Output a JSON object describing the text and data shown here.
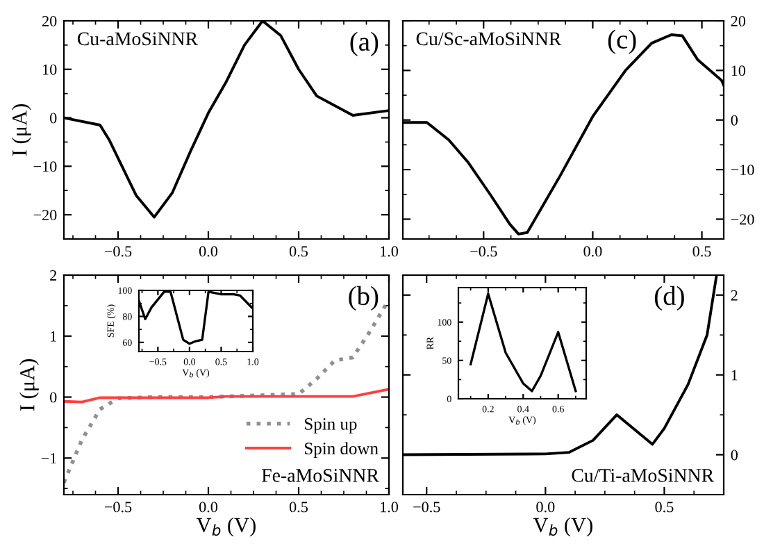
{
  "chart_data": [
    {
      "type": "line",
      "ylabel": "I (μA)",
      "annotations": [
        "Cu-aMoSiNNR",
        "(a)"
      ],
      "xlim": [
        -0.8,
        1.0
      ],
      "ylim": [
        -25,
        20
      ],
      "xticks": [
        {
          "value": -0.5,
          "label": "−0.5"
        },
        {
          "value": 0,
          "label": "0.0"
        },
        {
          "value": 0.5,
          "label": "0.5"
        },
        {
          "value": 1,
          "label": "1.0"
        }
      ],
      "yticks": [
        {
          "value": -20,
          "label": "−20"
        },
        {
          "value": -10,
          "label": "−10"
        },
        0,
        10,
        20
      ],
      "grid": false,
      "legend": false,
      "series": [
        {
          "color": "#000000",
          "x": [
            -0.8,
            -0.6,
            -0.55,
            -0.4,
            -0.3,
            -0.2,
            -0.1,
            0.0,
            0.1,
            0.2,
            0.3,
            0.4,
            0.5,
            0.6,
            0.8,
            1.0
          ],
          "values": [
            0,
            -1.5,
            -4.5,
            -16,
            -20.5,
            -15.5,
            -7,
            1,
            7.5,
            15,
            20,
            17,
            10,
            4.5,
            0.5,
            1.5
          ]
        }
      ]
    },
    {
      "type": "line",
      "xlabel": "V$_{b}$ (V)",
      "ylabel": "I (μA)",
      "annotations": [
        "Fe-aMoSiNNR",
        "(b)"
      ],
      "xlim": [
        -0.8,
        1.0
      ],
      "ylim": [
        -1.6,
        2
      ],
      "xticks": [
        {
          "value": -0.5,
          "label": "−0.5"
        },
        {
          "value": 0,
          "label": "0.0"
        },
        {
          "value": 0.5,
          "label": "0.5"
        },
        {
          "value": 1,
          "label": "1.0"
        }
      ],
      "yticks": [
        {
          "value": -1,
          "label": "−1"
        },
        0,
        1,
        2
      ],
      "grid": false,
      "legend": "bottom right",
      "series": [
        {
          "name": "Spin up",
          "color": "#909090",
          "line_style": "dotted",
          "x": [
            -0.8,
            -0.7,
            -0.6,
            -0.5,
            -0.3,
            0.0,
            0.3,
            0.5,
            0.6,
            0.7,
            0.8,
            0.9,
            1.0
          ],
          "values": [
            -1.4,
            -0.7,
            -0.2,
            -0.02,
            0,
            0,
            0.03,
            0.05,
            0.3,
            0.6,
            0.65,
            1.1,
            1.6
          ]
        },
        {
          "name": "Spin down",
          "color": "#ff4040",
          "line_style": "solid",
          "x": [
            -0.8,
            -0.7,
            -0.6,
            -0.5,
            0.0,
            0.1,
            0.8,
            1.0
          ],
          "values": [
            -0.07,
            -0.08,
            -0.01,
            -0.01,
            -0.01,
            0.01,
            0.01,
            0.13
          ]
        }
      ]
    },
    {
      "type": "line",
      "xlabel": "V$_{b}$ (V)",
      "ylabel": "SFE (%)",
      "xlim": [
        -0.8,
        1.0
      ],
      "ylim": [
        53,
        100
      ],
      "xticks": [
        {
          "value": -0.5,
          "label": "−0.5"
        },
        {
          "value": 0,
          "label": "0.0"
        },
        {
          "value": 0.5,
          "label": "0.5"
        },
        {
          "value": 1,
          "label": "1.0"
        }
      ],
      "yticks": [
        60,
        80,
        100
      ],
      "grid": false,
      "legend": false,
      "series": [
        {
          "color": "#000000",
          "x": [
            -0.8,
            -0.7,
            -0.6,
            -0.4,
            -0.3,
            -0.1,
            0.0,
            0.1,
            0.2,
            0.3,
            0.5,
            0.7,
            0.8,
            1.0
          ],
          "values": [
            92,
            78,
            87,
            99,
            99,
            62,
            59,
            61,
            62,
            99,
            97,
            97,
            96,
            86
          ]
        }
      ]
    },
    {
      "type": "line",
      "annotations": [
        "Cu/Sc-aMoSiNNR",
        "(c)"
      ],
      "xlim": [
        -0.87,
        0.6
      ],
      "ylim": [
        -24,
        20
      ],
      "xticks": [
        {
          "value": -0.5,
          "label": "−0.5"
        },
        {
          "value": 0,
          "label": "0.0"
        },
        {
          "value": 0.5,
          "label": "0.5"
        }
      ],
      "yticks": [
        {
          "value": -20,
          "label": "−20"
        },
        {
          "value": -10,
          "label": "−10"
        },
        0,
        10,
        20
      ],
      "grid": false,
      "legend": false,
      "series": [
        {
          "color": "#000000",
          "x": [
            -0.87,
            -0.76,
            -0.66,
            -0.57,
            -0.47,
            -0.38,
            -0.34,
            -0.3,
            -0.15,
            0.0,
            0.15,
            0.27,
            0.36,
            0.41,
            0.48,
            0.59,
            0.6
          ],
          "values": [
            -0.5,
            -0.5,
            -4,
            -8.6,
            -15,
            -21,
            -23,
            -22.7,
            -11.3,
            0.7,
            10,
            15.5,
            17.2,
            17,
            12.2,
            8,
            7
          ]
        }
      ]
    },
    {
      "type": "line",
      "xlabel": "V$_{b}$ (V)",
      "annotations": [
        "Cu/Ti-aMoSiNNR",
        "(d)"
      ],
      "xlim": [
        -0.6,
        0.75
      ],
      "ylim": [
        -0.5,
        2.25
      ],
      "xticks": [
        {
          "value": -0.5,
          "label": "−0.5"
        },
        {
          "value": 0,
          "label": "0.0"
        },
        {
          "value": 0.5,
          "label": "0.5"
        }
      ],
      "yticks": [
        0,
        1,
        2
      ],
      "grid": false,
      "legend": false,
      "series": [
        {
          "color": "#000000",
          "x": [
            -0.6,
            0.0,
            0.1,
            0.2,
            0.3,
            0.45,
            0.5,
            0.6,
            0.68,
            0.72
          ],
          "values": [
            0,
            0.01,
            0.03,
            0.18,
            0.5,
            0.13,
            0.33,
            0.88,
            1.5,
            2.25
          ]
        }
      ]
    },
    {
      "type": "line",
      "xlabel": "V$_{b}$ (V)",
      "ylabel": "RR",
      "xlim": [
        0.03,
        0.76
      ],
      "ylim": [
        0,
        145
      ],
      "xticks": [
        0.2,
        0.4,
        0.6
      ],
      "yticks": [
        0,
        50,
        100
      ],
      "grid": false,
      "legend": false,
      "series": [
        {
          "color": "#000000",
          "x": [
            0.1,
            0.2,
            0.3,
            0.4,
            0.45,
            0.5,
            0.6,
            0.7
          ],
          "values": [
            45,
            137,
            60,
            20,
            10,
            30,
            87,
            10
          ]
        }
      ]
    }
  ]
}
